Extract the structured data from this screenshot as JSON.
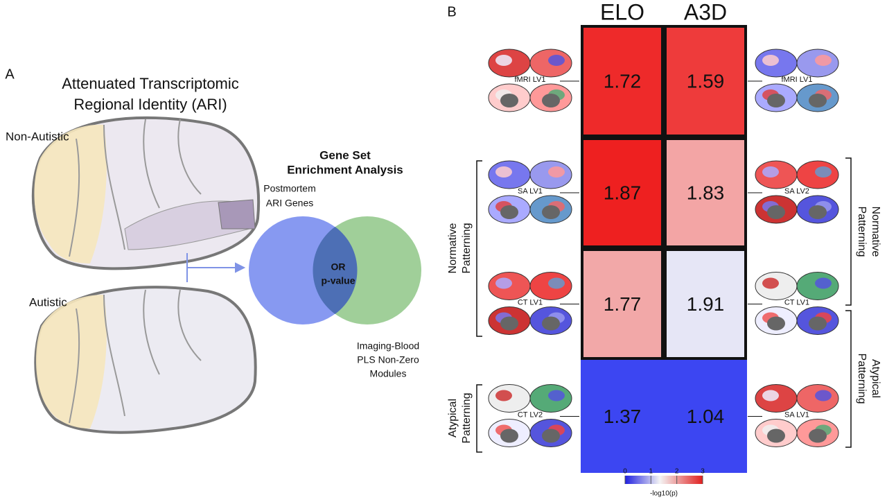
{
  "panel_a": {
    "label": "A",
    "title": [
      "Attenuated Transcriptomic",
      "Regional Identity (ARI)"
    ],
    "groups": [
      "Non-Autistic",
      "Autistic"
    ],
    "venn": {
      "title": [
        "Gene Set",
        "Enrichment Analysis"
      ],
      "left": [
        "Postmortem",
        "ARI Genes"
      ],
      "center": [
        "OR",
        "p-value"
      ],
      "right": [
        "Imaging-Blood",
        "PLS Non-Zero",
        "Modules"
      ]
    }
  },
  "panel_b": {
    "label": "B",
    "columns": [
      "ELO",
      "A3D"
    ],
    "rows": [
      {
        "left": "fMRI LV1",
        "right": "fMRI LV1",
        "values": [
          1.72,
          1.59
        ],
        "colors": [
          "#ee2a2a",
          "#ee3b3b"
        ]
      },
      {
        "left": "SA LV1",
        "right": "SA LV2",
        "values": [
          1.87,
          1.83
        ],
        "colors": [
          "#ee2020",
          "#f3a5a5"
        ]
      },
      {
        "left": "CT LV1",
        "right": "CT LV1",
        "values": [
          1.77,
          1.91
        ],
        "colors": [
          "#f2a8a8",
          "#e6e6f6"
        ]
      },
      {
        "left": "CT LV2",
        "right": "SA LV1",
        "values": [
          1.37,
          1.04
        ],
        "colors": [
          "#3c46f2",
          "#3c46f2"
        ]
      }
    ],
    "brackets_left": [
      [
        "Normative",
        "Patterning"
      ],
      [
        "Atypical",
        "Patterning"
      ]
    ],
    "brackets_right": [
      [
        "Normative",
        "Patterning"
      ],
      [
        "Atypical",
        "Patterning"
      ]
    ],
    "colorbar": {
      "ticks": [
        0,
        1,
        2,
        3
      ],
      "label": "-log10(p)"
    }
  }
}
